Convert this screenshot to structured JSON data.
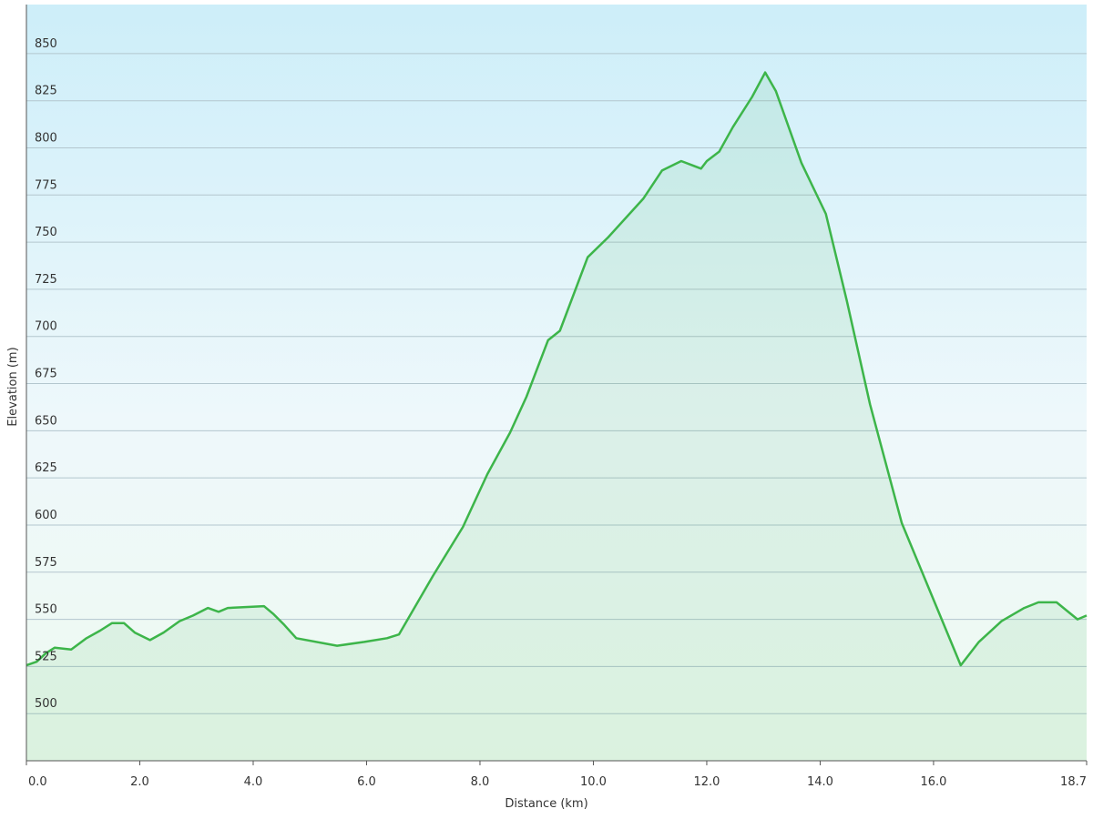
{
  "chart_data": {
    "type": "area",
    "x_label": "Distance  (km)",
    "y_label": "Elevation (m)",
    "x": [
      0,
      0.18,
      0.34,
      0.5,
      0.79,
      1.06,
      1.3,
      1.51,
      1.72,
      1.91,
      2.18,
      2.42,
      2.7,
      2.94,
      3.2,
      3.39,
      3.55,
      4.19,
      4.35,
      4.55,
      4.76,
      5.48,
      5.96,
      6.36,
      6.57,
      7.17,
      7.7,
      8.13,
      8.53,
      8.82,
      9.2,
      9.41,
      9.9,
      10.26,
      10.88,
      11.21,
      11.55,
      11.9,
      12.0,
      12.22,
      12.46,
      12.8,
      13.03,
      13.22,
      13.67,
      14.1,
      14.47,
      14.88,
      15.44,
      16.48,
      16.8,
      17.2,
      17.6,
      17.85,
      18.17,
      18.54,
      18.7
    ],
    "values": [
      525.6,
      527.5,
      532,
      535,
      534,
      540,
      544,
      548,
      548,
      543,
      539,
      543,
      549,
      552,
      556,
      554,
      556,
      557,
      553,
      547,
      540,
      536,
      538,
      540,
      542,
      573,
      599,
      627,
      649,
      668,
      698,
      703,
      742,
      752.5,
      773,
      788,
      793,
      789,
      793,
      798,
      811,
      827,
      840,
      830,
      792,
      765,
      719,
      664,
      601,
      525.6,
      538,
      549,
      556,
      559,
      559,
      550,
      552
    ],
    "color": "#3db54a",
    "xlim": [
      0,
      18.7
    ],
    "ylim": [
      475,
      876
    ],
    "xticks": [
      {
        "value": 0,
        "label": "0.0"
      },
      {
        "value": 2,
        "label": "2.0"
      },
      {
        "value": 4,
        "label": "4.0"
      },
      {
        "value": 6,
        "label": "6.0"
      },
      {
        "value": 8,
        "label": "8.0"
      },
      {
        "value": 10,
        "label": "10.0"
      },
      {
        "value": 12,
        "label": "12.0"
      },
      {
        "value": 14,
        "label": "14.0"
      },
      {
        "value": 16,
        "label": "16.0"
      },
      18.7
    ],
    "yticks": [
      500,
      525,
      550,
      575,
      600,
      625,
      650,
      675,
      700,
      725,
      750,
      775,
      800,
      825,
      850
    ],
    "grid": true
  }
}
